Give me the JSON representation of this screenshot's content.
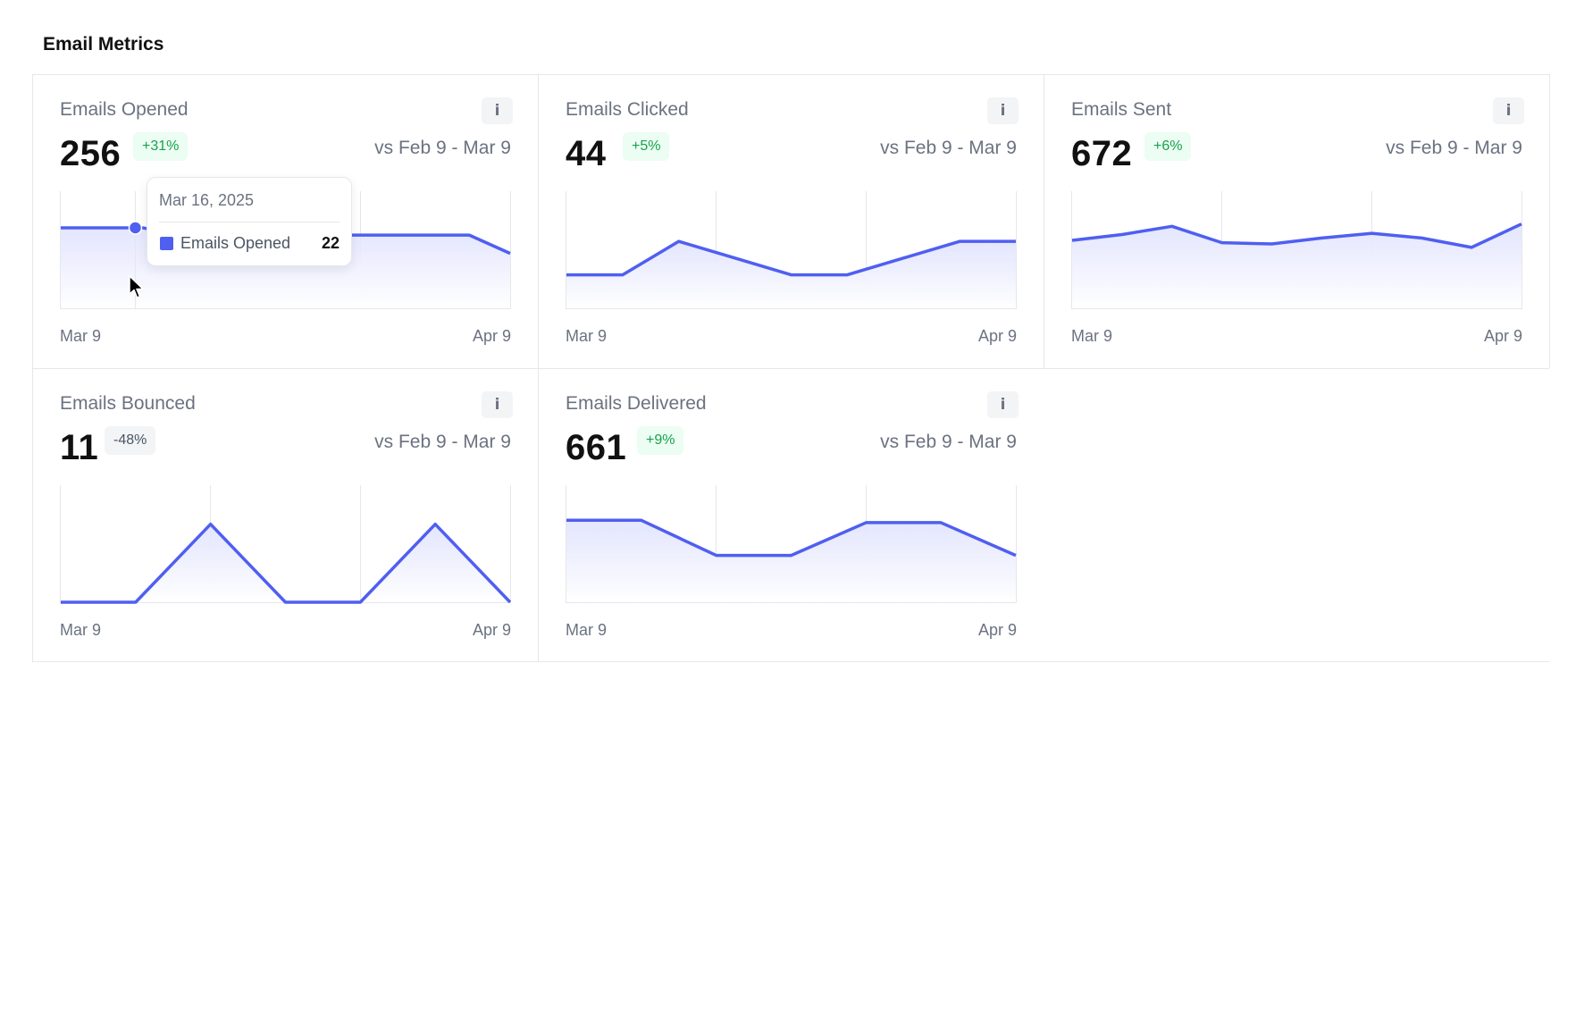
{
  "page": {
    "title": "Email Metrics"
  },
  "colors": {
    "line": "#4f5ff0",
    "area_top": "#e0e3fd",
    "area_bottom": "#ffffff",
    "grid": "#e5e7eb",
    "badge_positive_text": "#16a34a",
    "badge_positive_bg": "#ecfdf3",
    "badge_neutral_text": "#4b5563",
    "badge_neutral_bg": "#f3f4f6"
  },
  "cards": [
    {
      "title": "Emails Opened",
      "value": "256",
      "change": "+31%",
      "change_type": "positive",
      "comparison": "vs Feb 9 - Mar 9",
      "info_icon": "i",
      "x_start": "Mar 9",
      "x_end": "Apr 9"
    },
    {
      "title": "Emails Clicked",
      "value": "44",
      "change": "+5%",
      "change_type": "positive",
      "comparison": "vs Feb 9 - Mar 9",
      "info_icon": "i",
      "x_start": "Mar 9",
      "x_end": "Apr 9"
    },
    {
      "title": "Emails Sent",
      "value": "672",
      "change": "+6%",
      "change_type": "positive",
      "comparison": "vs Feb 9 - Mar 9",
      "info_icon": "i",
      "x_start": "Mar 9",
      "x_end": "Apr 9"
    },
    {
      "title": "Emails Bounced",
      "value": "11",
      "change": "-48%",
      "change_type": "neutral",
      "comparison": "vs Feb 9 - Mar 9",
      "info_icon": "i",
      "x_start": "Mar 9",
      "x_end": "Apr 9"
    },
    {
      "title": "Emails Delivered",
      "value": "661",
      "change": "+9%",
      "change_type": "positive",
      "comparison": "vs Feb 9 - Mar 9",
      "info_icon": "i",
      "x_start": "Mar 9",
      "x_end": "Apr 9"
    }
  ],
  "tooltip": {
    "date": "Mar 16, 2025",
    "series": "Emails Opened",
    "value": "22"
  },
  "chart_data": [
    {
      "type": "area",
      "series": [
        {
          "name": "Emails Opened",
          "values": [
            22,
            22,
            22,
            20,
            14,
            14,
            14,
            20,
            20,
            20,
            20,
            15
          ]
        }
      ],
      "ylim": [
        0,
        32
      ],
      "grid": "vertical",
      "x_labels": [
        "Mar 9",
        "Apr 9"
      ],
      "highlight": {
        "index": 2,
        "value": 22
      }
    },
    {
      "type": "area",
      "series": [
        {
          "name": "Emails Clicked",
          "values": [
            2,
            2,
            4,
            3,
            2,
            2,
            3,
            4,
            4
          ]
        }
      ],
      "ylim": [
        0,
        7
      ],
      "grid": "vertical",
      "x_labels": [
        "Mar 9",
        "Apr 9"
      ]
    },
    {
      "type": "area",
      "series": [
        {
          "name": "Emails Sent",
          "values": [
            58,
            63,
            70,
            56,
            55,
            60,
            64,
            60,
            52,
            72
          ]
        }
      ],
      "ylim": [
        0,
        100
      ],
      "grid": "vertical",
      "x_labels": [
        "Mar 9",
        "Apr 9"
      ]
    },
    {
      "type": "area",
      "series": [
        {
          "name": "Emails Bounced",
          "values": [
            0,
            0,
            2,
            0,
            0,
            2,
            0
          ]
        }
      ],
      "ylim": [
        0,
        3
      ],
      "grid": "vertical",
      "x_labels": [
        "Mar 9",
        "Apr 9"
      ]
    },
    {
      "type": "area",
      "series": [
        {
          "name": "Emails Delivered",
          "values": [
            70,
            70,
            40,
            40,
            68,
            68,
            40
          ]
        }
      ],
      "ylim": [
        0,
        100
      ],
      "grid": "vertical",
      "x_labels": [
        "Mar 9",
        "Apr 9"
      ]
    }
  ]
}
